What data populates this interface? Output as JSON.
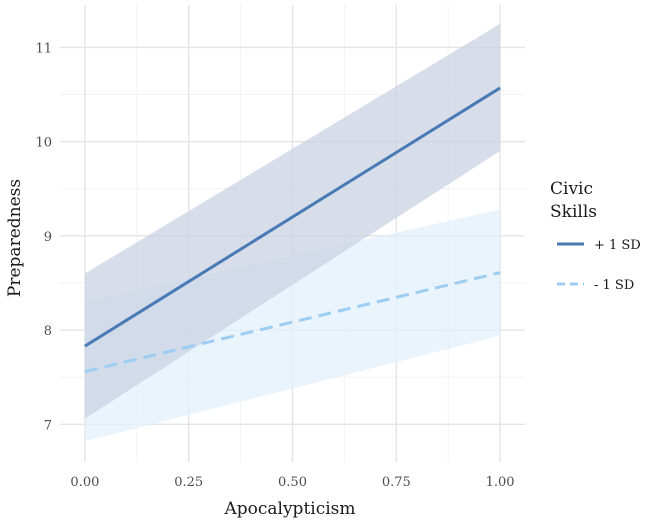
{
  "chart_data": {
    "type": "line",
    "title": "",
    "xlabel": "Apocalypticism",
    "ylabel": "Preparedness",
    "xlim": [
      -0.06,
      1.06
    ],
    "ylim": [
      6.6,
      11.45
    ],
    "grid": true,
    "xticks": [
      0.0,
      0.25,
      0.5,
      0.75,
      1.0
    ],
    "xtick_labels": [
      "0.00",
      "0.25",
      "0.50",
      "0.75",
      "1.00"
    ],
    "yticks": [
      7,
      8,
      9,
      10,
      11
    ],
    "ytick_labels": [
      "7",
      "8",
      "9",
      "10",
      "11"
    ],
    "legend": {
      "title_lines": [
        "Civic",
        "Skills"
      ],
      "placement": "right"
    },
    "series": [
      {
        "name": "+ 1 SD",
        "color": "#4a7ab5",
        "ribbon_color": "#c9d3e3",
        "dash": "solid",
        "x": [
          0.0,
          1.0
        ],
        "y": [
          7.83,
          10.57
        ],
        "lower": [
          7.06,
          9.9
        ],
        "upper": [
          8.6,
          11.25
        ]
      },
      {
        "name": "- 1 SD",
        "color": "#9ecdf2",
        "ribbon_color": "#e3f0fb",
        "dash": "dashed",
        "x": [
          0.0,
          1.0
        ],
        "y": [
          7.56,
          8.61
        ],
        "lower": [
          6.82,
          7.94
        ],
        "upper": [
          8.3,
          9.28
        ]
      }
    ]
  }
}
